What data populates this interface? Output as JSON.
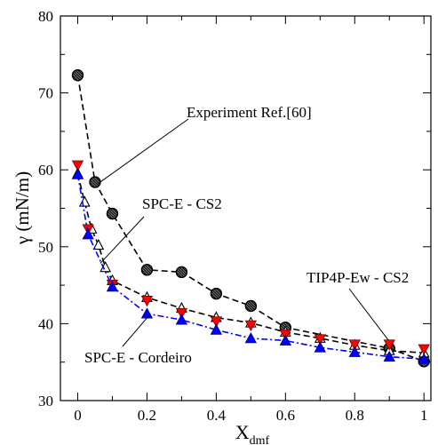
{
  "chart_data": {
    "type": "line",
    "title": "",
    "xlabel": "X",
    "xlabel_sub": "dmf",
    "ylabel": "γ (mN/m)",
    "xlim": [
      -0.05,
      1.02
    ],
    "ylim": [
      30,
      80
    ],
    "xticks": [
      0,
      0.2,
      0.4,
      0.6,
      0.8,
      1
    ],
    "xtick_labels": [
      "0",
      "0.2",
      "0.4",
      "0.6",
      "0.8",
      "1"
    ],
    "yticks": [
      30,
      40,
      50,
      60,
      70,
      80
    ],
    "ytick_labels": [
      "30",
      "40",
      "50",
      "60",
      "70",
      "80"
    ],
    "grid": false,
    "legend": "none (annotations with leader lines)",
    "series": [
      {
        "name": "Experiment Ref.[60]",
        "marker": "hatched-circle",
        "color": "#000000",
        "line": "dashed",
        "x": [
          0,
          0.05,
          0.1,
          0.2,
          0.3,
          0.4,
          0.5,
          0.6,
          0.9,
          1.0
        ],
        "y": [
          72.3,
          58.4,
          54.3,
          47.0,
          46.7,
          43.9,
          42.3,
          39.5,
          36.8,
          35.1
        ]
      },
      {
        "name": "SPC-E - CS2",
        "marker": "open-triangle",
        "color": "#000000",
        "line": "dashed",
        "x": [
          0,
          0.02,
          0.04,
          0.06,
          0.08,
          0.1,
          0.2,
          0.3,
          0.4,
          0.5,
          0.6,
          0.7,
          0.8,
          0.9,
          1.0
        ],
        "y": [
          59.5,
          55.8,
          52.3,
          50.2,
          47.3,
          45.6,
          43.4,
          42.0,
          40.8,
          40.1,
          38.9,
          38.1,
          37.2,
          36.5,
          36.2
        ]
      },
      {
        "name": "TIP4P-Ew - CS2",
        "marker": "down-triangle",
        "color": "#ff0000",
        "line": "none",
        "x": [
          0,
          0.03,
          0.1,
          0.2,
          0.3,
          0.4,
          0.5,
          0.6,
          0.7,
          0.8,
          0.9,
          1.0
        ],
        "y": [
          60.6,
          52.3,
          45.1,
          43.0,
          41.4,
          40.3,
          39.8,
          38.6,
          38.0,
          37.3,
          37.3,
          36.7
        ]
      },
      {
        "name": "SPC-E - Cordeiro",
        "marker": "up-triangle",
        "color": "#0000ff",
        "line": "dash-dot",
        "x": [
          0,
          0.03,
          0.1,
          0.2,
          0.3,
          0.4,
          0.5,
          0.6,
          0.7,
          0.8,
          0.9,
          1.0
        ],
        "y": [
          59.4,
          51.6,
          44.8,
          41.3,
          40.5,
          39.2,
          38.1,
          37.8,
          36.9,
          36.3,
          35.7,
          35.4
        ]
      }
    ],
    "annotations": [
      {
        "text": "Experiment Ref.[60]",
        "points_to": [
          0.05,
          58.4
        ]
      },
      {
        "text": "SPC-E - CS2",
        "points_to": [
          0.06,
          47.5
        ]
      },
      {
        "text": "TIP4P-Ew - CS2",
        "points_to": [
          0.9,
          37.5
        ]
      },
      {
        "text": "SPC-E - Cordeiro",
        "points_to": [
          0.2,
          41.5
        ]
      }
    ]
  }
}
